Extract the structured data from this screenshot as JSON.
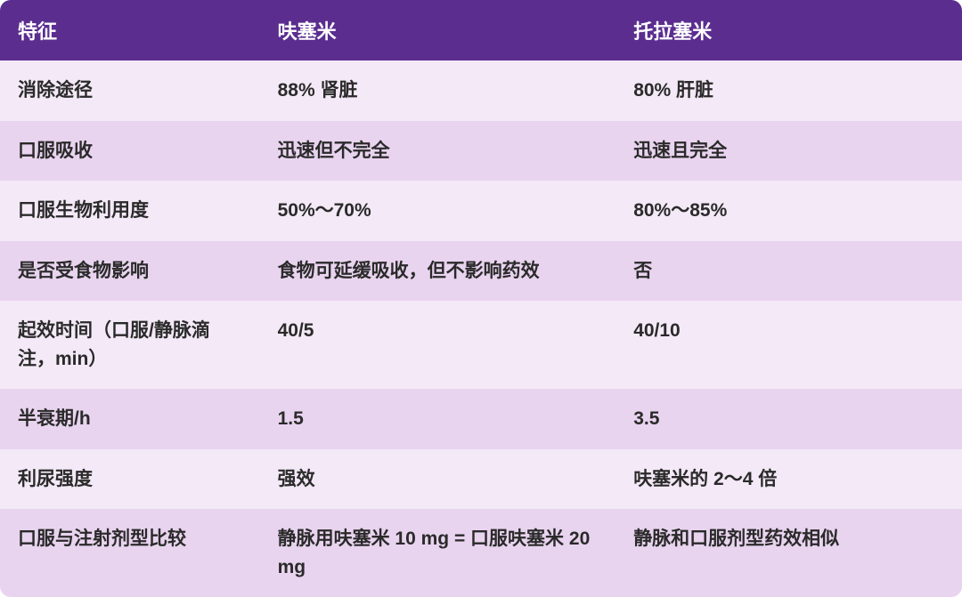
{
  "table": {
    "type": "table",
    "header_bg_color": "#5a2d8f",
    "header_text_color": "#ffffff",
    "row_odd_bg_color": "#f4e9f7",
    "row_even_bg_color": "#e9d4ef",
    "cell_text_color": "#2a2a2a",
    "header_fontsize": 22,
    "cell_fontsize": 21,
    "font_weight": "bold",
    "column_widths": [
      "27%",
      "37%",
      "36%"
    ],
    "columns": [
      "特征",
      "呋塞米",
      "托拉塞米"
    ],
    "rows": [
      [
        "消除途径",
        "88% 肾脏",
        "80% 肝脏"
      ],
      [
        "口服吸收",
        "迅速但不完全",
        "迅速且完全"
      ],
      [
        "口服生物利用度",
        "50%～70%",
        "80%～85%"
      ],
      [
        "是否受食物影响",
        "食物可延缓吸收，但不影响药效",
        "否"
      ],
      [
        "起效时间（口服/静脉滴注，min）",
        "40/5",
        "40/10"
      ],
      [
        "半衰期/h",
        "1.5",
        "3.5"
      ],
      [
        "利尿强度",
        "强效",
        "呋塞米的 2～4 倍"
      ],
      [
        "口服与注射剂型比较",
        "静脉用呋塞米 10 mg = 口服呋塞米 20 mg",
        "静脉和口服剂型药效相似"
      ]
    ]
  }
}
